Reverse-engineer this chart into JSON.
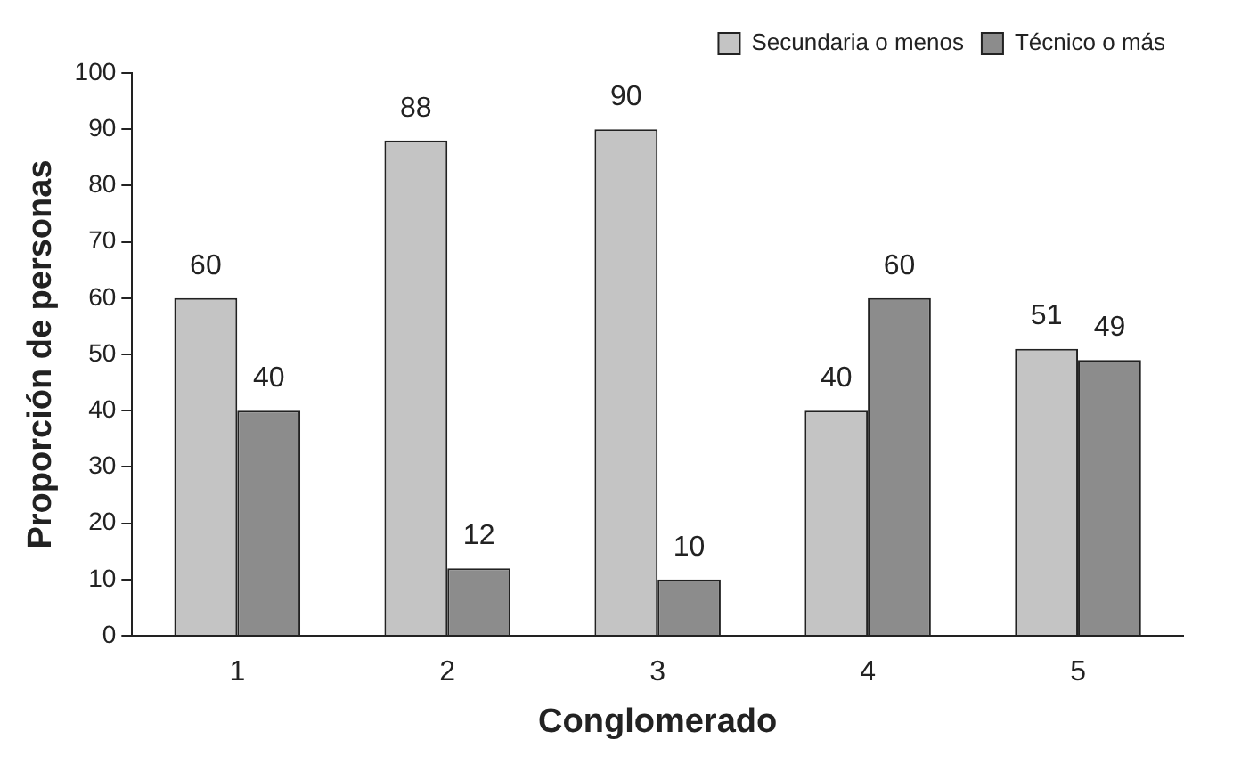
{
  "chart_data": {
    "type": "bar",
    "xlabel": "Conglomerado",
    "ylabel": "Proporción de personas",
    "categories": [
      "1",
      "2",
      "3",
      "4",
      "5"
    ],
    "series": [
      {
        "name": "Secundaria o menos",
        "color": "#c4c4c4",
        "values": [
          60,
          88,
          90,
          40,
          51
        ]
      },
      {
        "name": "Técnico o más",
        "color": "#8c8c8c",
        "values": [
          40,
          12,
          10,
          60,
          49
        ]
      }
    ],
    "ylim": [
      0,
      100
    ],
    "yticks": [
      0,
      10,
      20,
      30,
      40,
      50,
      60,
      70,
      80,
      90,
      100
    ],
    "grid": false,
    "legend": "top right",
    "data_labels": true
  }
}
